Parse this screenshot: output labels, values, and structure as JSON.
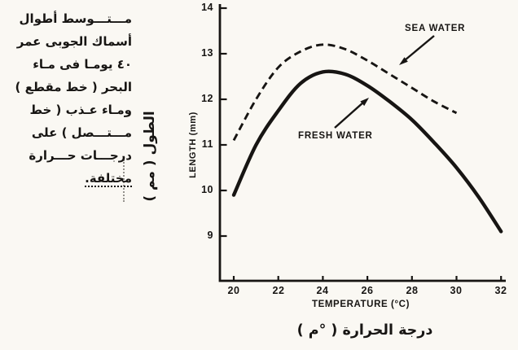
{
  "colors": {
    "ink": "#171513",
    "paper": "#faf8f3"
  },
  "caption": {
    "lines": [
      "مـــتـــوسط أطوال",
      "أسماك الجوبى عمر",
      "٤٠ يومـا فى مـاء",
      "البحر ( خط مقطع )",
      "ومـاء عـذب ( خط",
      "مـــتـــصل ) على",
      "درجـــات حـــرارة",
      "مختلفة."
    ]
  },
  "chart_data": {
    "type": "line",
    "title": "",
    "x_label": "TEMPERATURE (°C)",
    "x_label_arabic": "درجة الحرارة ( °م )",
    "y_label": "LENGTH (mm)",
    "y_label_arabic": "الطول ( مم )",
    "x_ticks": [
      20,
      22,
      24,
      26,
      28,
      30,
      32
    ],
    "y_ticks": [
      14,
      13,
      12,
      11,
      10,
      9
    ],
    "xlim": [
      19.4,
      32.4
    ],
    "ylim": [
      8.0,
      14.1
    ],
    "grid": false,
    "legend_position": "inline-arrow-annotations",
    "series": [
      {
        "name": "SEA WATER",
        "line_style": "dashed",
        "x": [
          20,
          21,
          22,
          23,
          24,
          25,
          26,
          27,
          28,
          29,
          30
        ],
        "y": [
          11.1,
          12.0,
          12.7,
          13.05,
          13.2,
          13.1,
          12.85,
          12.55,
          12.25,
          11.95,
          11.7
        ]
      },
      {
        "name": "FRESH WATER",
        "line_style": "solid",
        "x": [
          20,
          21,
          22,
          23,
          24,
          25,
          26,
          27,
          28,
          29,
          30,
          31,
          32
        ],
        "y": [
          9.9,
          11.0,
          11.75,
          12.35,
          12.6,
          12.55,
          12.3,
          11.95,
          11.55,
          11.05,
          10.5,
          9.85,
          9.1
        ]
      }
    ]
  }
}
